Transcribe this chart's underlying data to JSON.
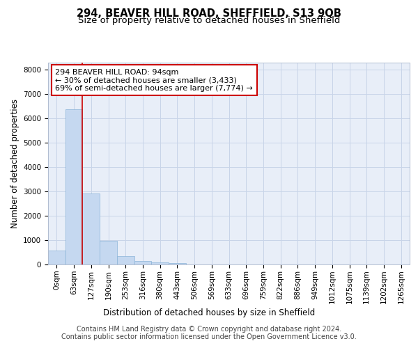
{
  "title_line1": "294, BEAVER HILL ROAD, SHEFFIELD, S13 9QB",
  "title_line2": "Size of property relative to detached houses in Sheffield",
  "xlabel": "Distribution of detached houses by size in Sheffield",
  "ylabel": "Number of detached properties",
  "bar_values": [
    580,
    6380,
    2920,
    960,
    350,
    155,
    90,
    55,
    0,
    0,
    0,
    0,
    0,
    0,
    0,
    0,
    0,
    0,
    0,
    0,
    0
  ],
  "bar_labels": [
    "0sqm",
    "63sqm",
    "127sqm",
    "190sqm",
    "253sqm",
    "316sqm",
    "380sqm",
    "443sqm",
    "506sqm",
    "569sqm",
    "633sqm",
    "696sqm",
    "759sqm",
    "822sqm",
    "886sqm",
    "949sqm",
    "1012sqm",
    "1075sqm",
    "1139sqm",
    "1202sqm",
    "1265sqm"
  ],
  "bar_color": "#c5d8f0",
  "bar_edge_color": "#8ab4d8",
  "vline_x": 1.5,
  "vline_color": "#cc0000",
  "annotation_text": "294 BEAVER HILL ROAD: 94sqm\n← 30% of detached houses are smaller (3,433)\n69% of semi-detached houses are larger (7,774) →",
  "annotation_box_color": "#ffffff",
  "annotation_box_edge": "#cc0000",
  "ylim": [
    0,
    8300
  ],
  "yticks": [
    0,
    1000,
    2000,
    3000,
    4000,
    5000,
    6000,
    7000,
    8000
  ],
  "grid_color": "#c8d4e8",
  "background_color": "#e8eef8",
  "footer_line1": "Contains HM Land Registry data © Crown copyright and database right 2024.",
  "footer_line2": "Contains public sector information licensed under the Open Government Licence v3.0.",
  "title_fontsize": 10.5,
  "subtitle_fontsize": 9.5,
  "axis_label_fontsize": 8.5,
  "tick_fontsize": 7.5,
  "annotation_fontsize": 8.0,
  "footer_fontsize": 7.0
}
